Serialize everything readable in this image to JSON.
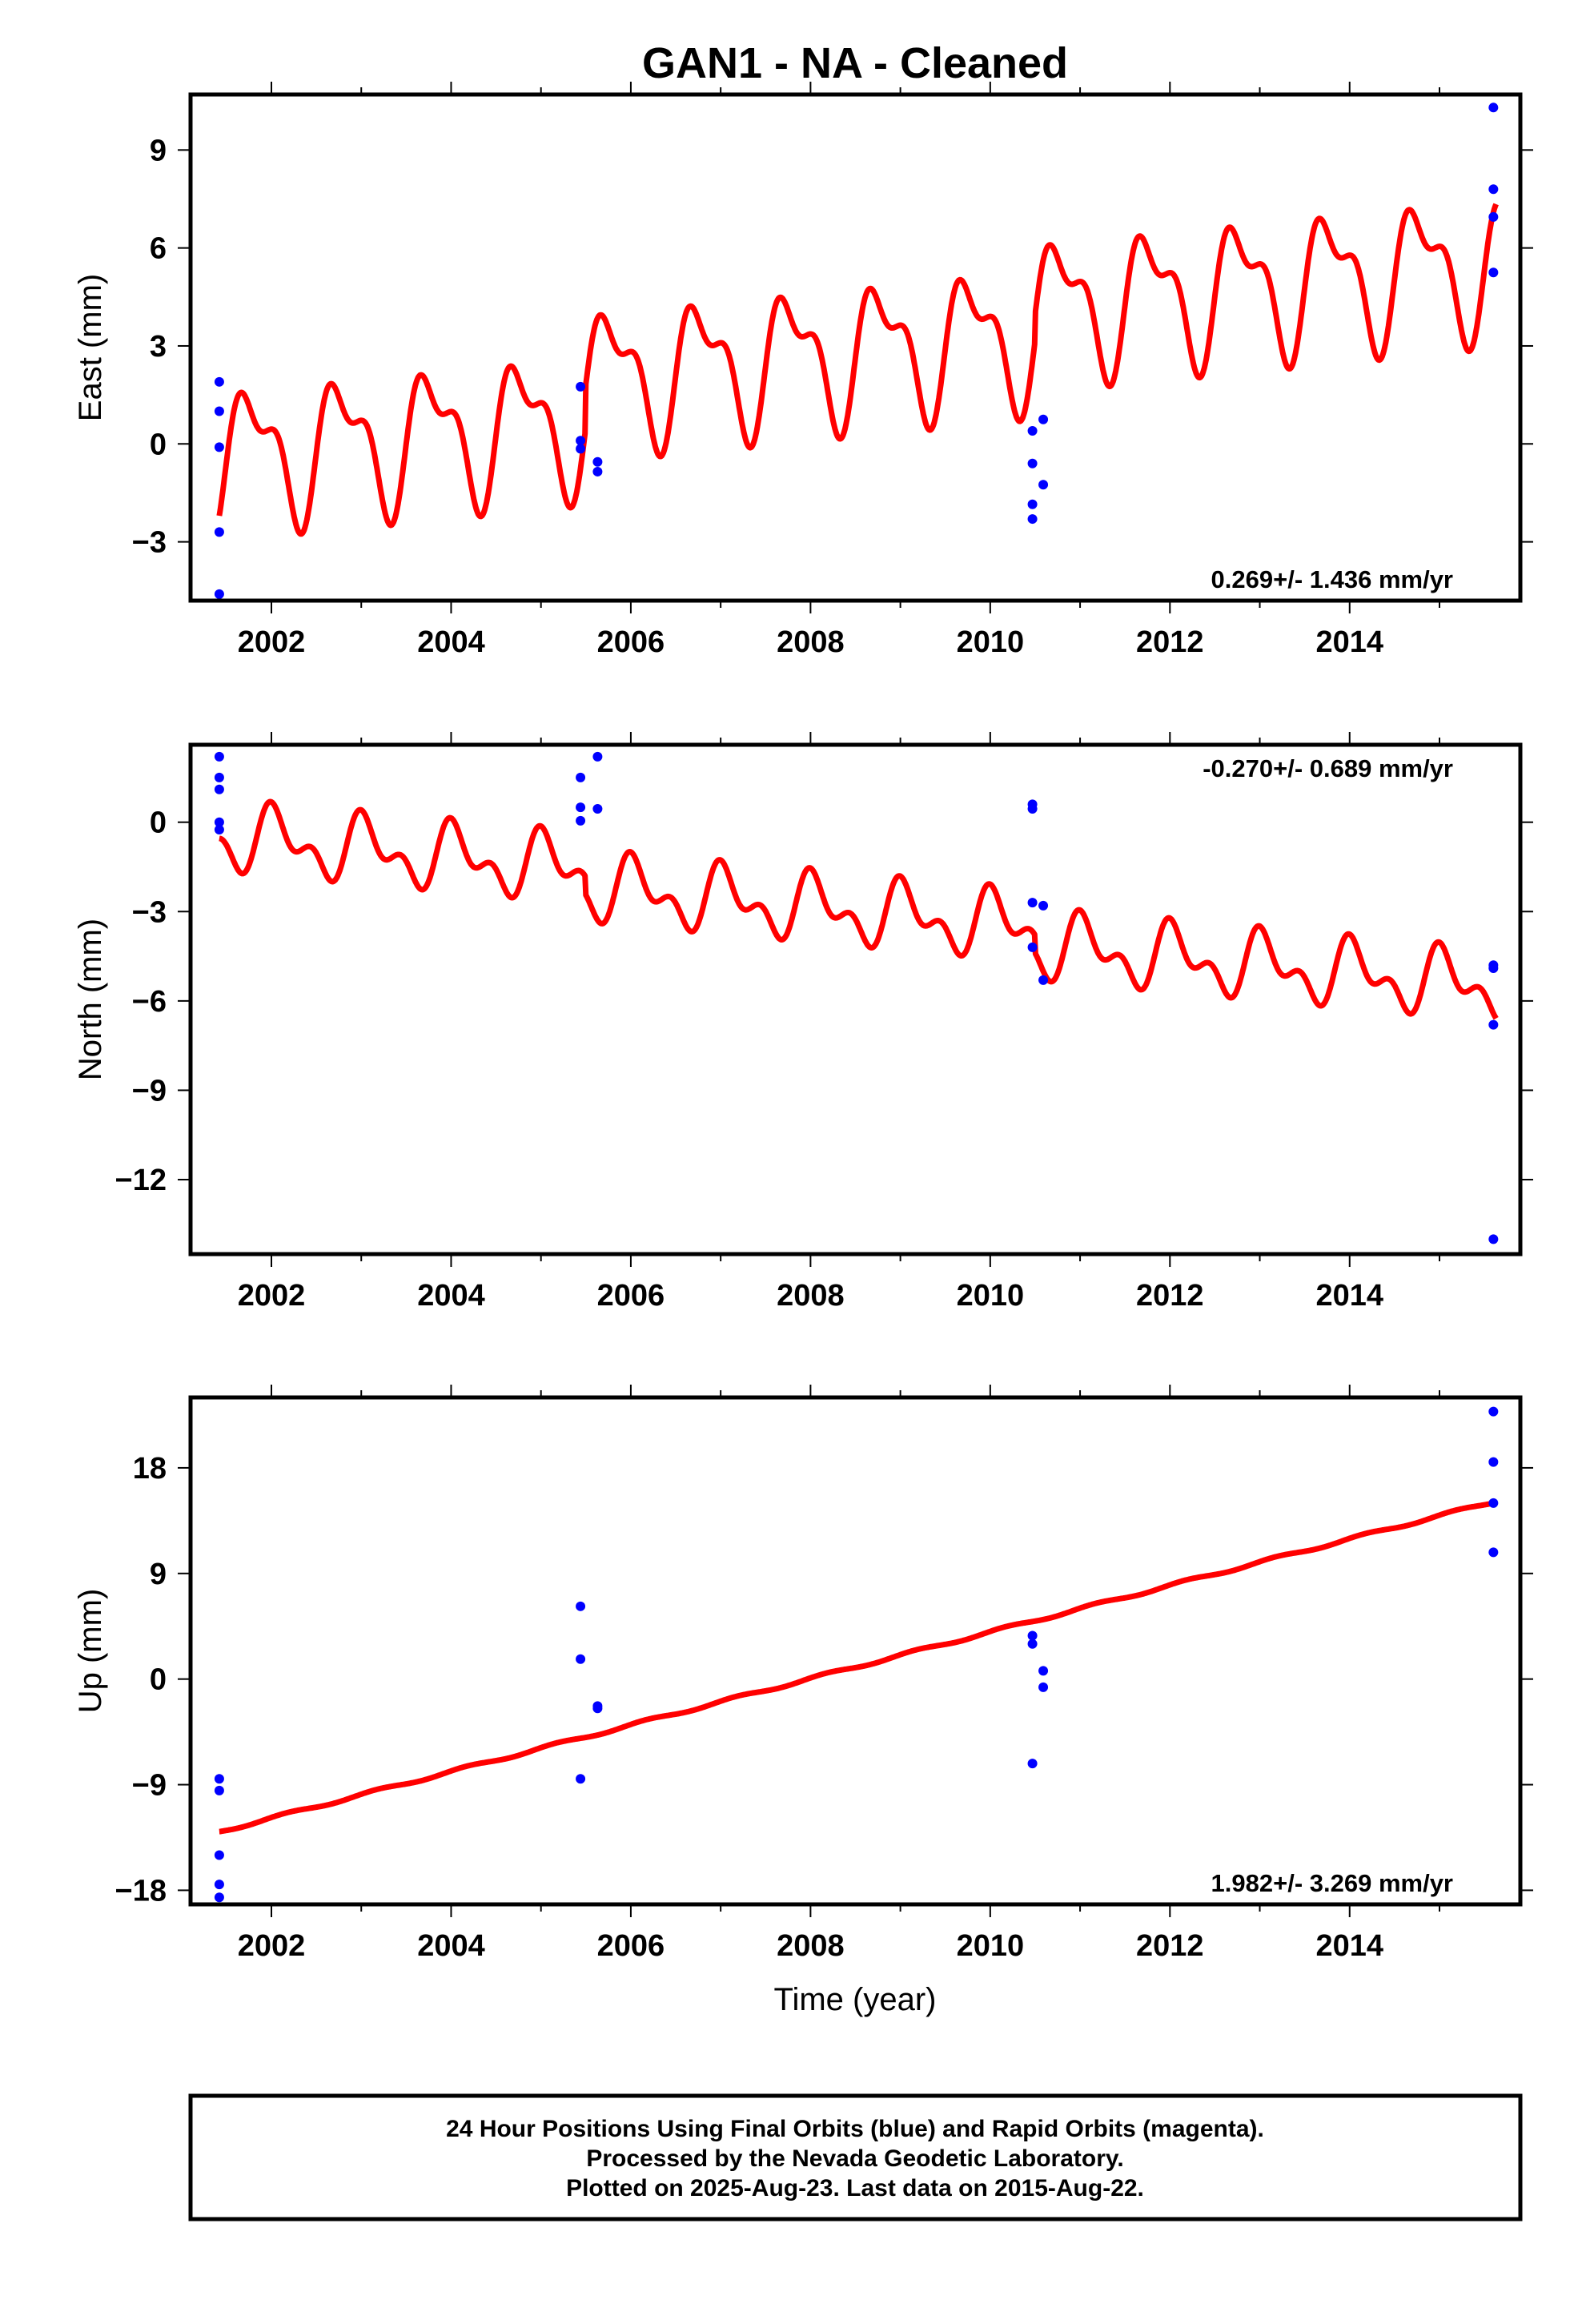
{
  "title": "GAN1  - NA - Cleaned",
  "xlabel": "Time (year)",
  "footer": {
    "line1": "24 Hour Positions Using Final Orbits (blue) and Rapid Orbits (magenta).",
    "line2": "Processed by the Nevada Geodetic Laboratory.",
    "line3": "Plotted on 2025-Aug-23. Last data on 2015-Aug-22."
  },
  "colors": {
    "points": "#0000ff",
    "fit": "#ff0000",
    "axes": "#000000"
  },
  "chart_data": [
    {
      "type": "scatter",
      "ylabel": "East (mm)",
      "rate": "0.269+/- 1.436 mm/yr",
      "rate_position": "bottom-right",
      "xlim": [
        2001.1,
        2015.9
      ],
      "ylim": [
        -4.8,
        10.7
      ],
      "xticks": [
        2002,
        2004,
        2006,
        2008,
        2010,
        2012,
        2014
      ],
      "yticks": [
        -3,
        0,
        3,
        6,
        9
      ],
      "points": [
        [
          2001.42,
          1.9
        ],
        [
          2001.42,
          1.0
        ],
        [
          2001.42,
          -0.1
        ],
        [
          2001.42,
          -2.7
        ],
        [
          2001.42,
          -4.6
        ],
        [
          2005.44,
          1.75
        ],
        [
          2005.44,
          0.1
        ],
        [
          2005.44,
          -0.15
        ],
        [
          2005.63,
          -0.55
        ],
        [
          2005.63,
          -0.85
        ],
        [
          2010.47,
          0.4
        ],
        [
          2010.47,
          -0.6
        ],
        [
          2010.47,
          -1.85
        ],
        [
          2010.47,
          -2.3
        ],
        [
          2010.59,
          0.75
        ],
        [
          2010.59,
          -1.25
        ],
        [
          2015.6,
          10.3
        ],
        [
          2015.6,
          7.8
        ],
        [
          2015.6,
          6.95
        ],
        [
          2015.6,
          5.25
        ]
      ],
      "fit": {
        "x_range": [
          2001.42,
          2015.63
        ],
        "intercept": -0.4,
        "slope": 0.269,
        "annual_amp": 1.8,
        "annual_phase": 2.9,
        "semiannual_amp": 0.9,
        "semiannual_phase": 0.3,
        "offsets": [
          [
            2005.5,
            1.3
          ],
          [
            2010.5,
            0.8
          ]
        ]
      }
    },
    {
      "type": "scatter",
      "ylabel": "North (mm)",
      "rate": "-0.270+/- 0.689 mm/yr",
      "rate_position": "top-right",
      "xlim": [
        2001.1,
        2015.9
      ],
      "ylim": [
        -14.5,
        2.6
      ],
      "xticks": [
        2002,
        2004,
        2006,
        2008,
        2010,
        2012,
        2014
      ],
      "yticks": [
        -12,
        -9,
        -6,
        -3,
        0
      ],
      "points": [
        [
          2001.42,
          2.2
        ],
        [
          2001.42,
          1.5
        ],
        [
          2001.42,
          1.1
        ],
        [
          2001.42,
          0.0
        ],
        [
          2001.42,
          -0.25
        ],
        [
          2005.44,
          1.5
        ],
        [
          2005.44,
          0.5
        ],
        [
          2005.44,
          0.05
        ],
        [
          2005.63,
          2.2
        ],
        [
          2005.63,
          0.45
        ],
        [
          2010.47,
          0.6
        ],
        [
          2010.47,
          0.45
        ],
        [
          2010.47,
          -2.7
        ],
        [
          2010.47,
          -4.2
        ],
        [
          2010.59,
          -2.8
        ],
        [
          2010.59,
          -5.3
        ],
        [
          2015.6,
          -4.8
        ],
        [
          2015.6,
          -4.9
        ],
        [
          2015.6,
          -6.8
        ],
        [
          2015.6,
          -14.0
        ]
      ],
      "fit": {
        "x_range": [
          2001.42,
          2015.63
        ],
        "intercept": -0.5,
        "slope": -0.27,
        "annual_amp": 0.85,
        "annual_phase": 1.2,
        "semiannual_amp": 0.6,
        "semiannual_phase": 2.0,
        "offsets": [
          [
            2005.5,
            -0.6
          ],
          [
            2010.5,
            -0.6
          ]
        ]
      }
    },
    {
      "type": "scatter",
      "ylabel": "Up (mm)",
      "rate": "1.982+/- 3.269 mm/yr",
      "rate_position": "bottom-right",
      "xlim": [
        2001.1,
        2015.9
      ],
      "ylim": [
        -19.2,
        24.0
      ],
      "xticks": [
        2002,
        2004,
        2006,
        2008,
        2010,
        2012,
        2014
      ],
      "yticks": [
        -18,
        -9,
        0,
        9,
        18
      ],
      "points": [
        [
          2001.42,
          -8.5
        ],
        [
          2001.42,
          -9.5
        ],
        [
          2001.42,
          -15.0
        ],
        [
          2001.42,
          -17.5
        ],
        [
          2001.42,
          -18.6
        ],
        [
          2005.44,
          6.2
        ],
        [
          2005.44,
          1.7
        ],
        [
          2005.44,
          -8.5
        ],
        [
          2005.63,
          -2.3
        ],
        [
          2005.63,
          -2.5
        ],
        [
          2010.47,
          3.7
        ],
        [
          2010.47,
          3.0
        ],
        [
          2010.47,
          -7.2
        ],
        [
          2010.59,
          0.7
        ],
        [
          2010.59,
          -0.7
        ],
        [
          2015.6,
          22.8
        ],
        [
          2015.6,
          18.5
        ],
        [
          2015.6,
          15.0
        ],
        [
          2015.6,
          10.8
        ]
      ],
      "fit": {
        "x_range": [
          2001.42,
          2015.63
        ],
        "intercept": -13.0,
        "slope": 1.982,
        "annual_amp": 0.12,
        "annual_phase": 0.5,
        "semiannual_amp": 0.0,
        "semiannual_phase": 0.0,
        "offsets": []
      }
    }
  ]
}
